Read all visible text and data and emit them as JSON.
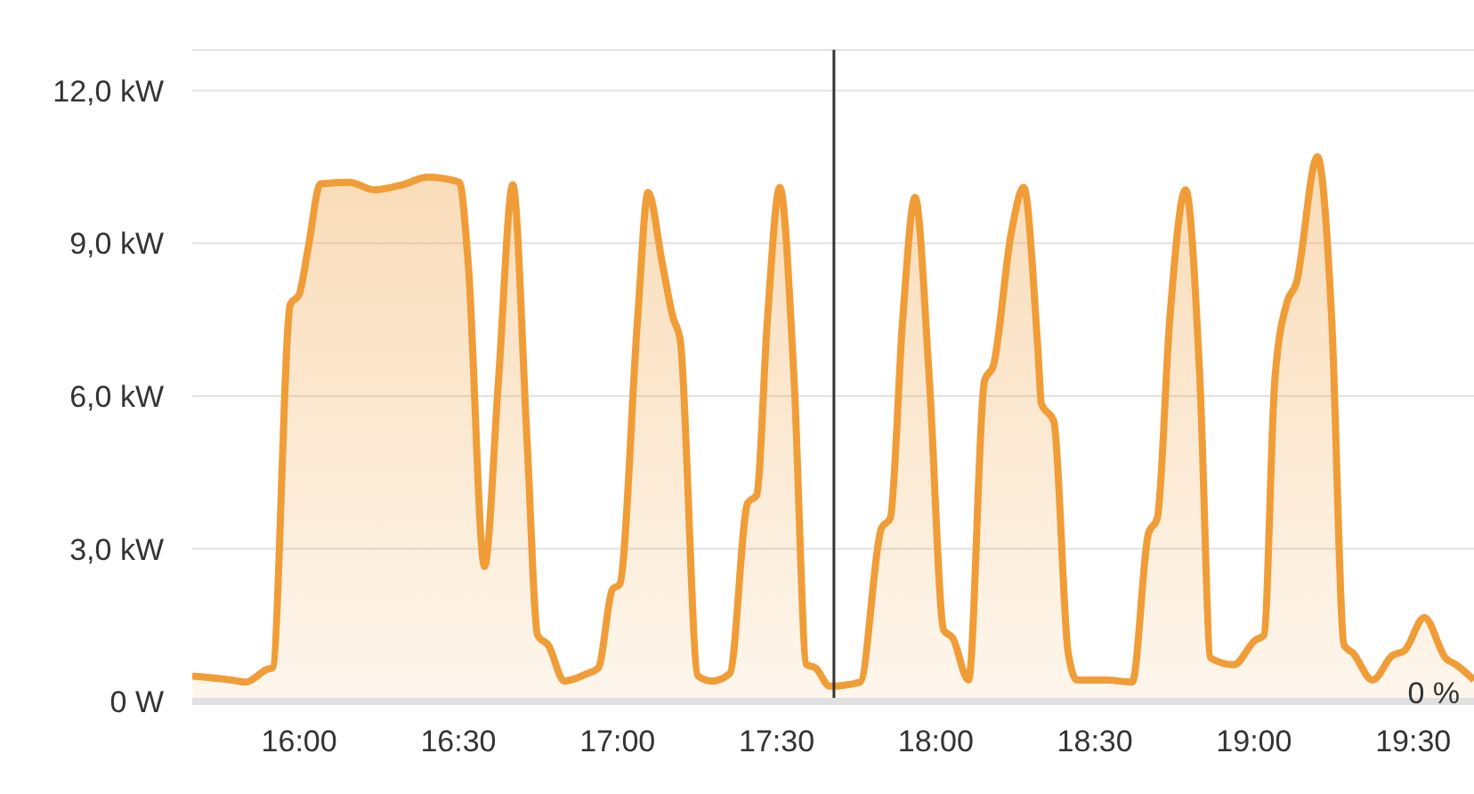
{
  "chart_data": {
    "type": "area",
    "x": [
      15.664,
      15.788,
      15.832,
      15.899,
      15.916,
      15.972,
      16.0,
      16.028,
      16.067,
      16.157,
      16.235,
      16.324,
      16.403,
      16.503,
      16.531,
      16.582,
      16.626,
      16.671,
      16.716,
      16.749,
      16.783,
      16.833,
      16.906,
      16.94,
      16.984,
      17.007,
      17.063,
      17.096,
      17.141,
      17.174,
      17.197,
      17.253,
      17.298,
      17.353,
      17.409,
      17.437,
      17.471,
      17.51,
      17.555,
      17.594,
      17.622,
      17.667,
      17.762,
      17.829,
      17.857,
      17.896,
      17.935,
      17.98,
      18.025,
      18.053,
      18.103,
      18.153,
      18.181,
      18.237,
      18.276,
      18.321,
      18.332,
      18.371,
      18.416,
      18.444,
      18.539,
      18.617,
      18.668,
      18.696,
      18.735,
      18.785,
      18.83,
      18.864,
      18.936,
      19.003,
      19.031,
      19.065,
      19.104,
      19.132,
      19.199,
      19.244,
      19.283,
      19.311,
      19.372,
      19.434,
      19.473,
      19.535,
      19.602,
      19.635,
      19.691
    ],
    "series": [
      {
        "color": "#f09d38",
        "values": [
          0.5,
          0.42,
          0.38,
          0.63,
          0.66,
          7.8,
          8.0,
          8.9,
          10.17,
          10.2,
          10.05,
          10.15,
          10.3,
          10.2,
          8.6,
          2.65,
          6.3,
          10.15,
          5.1,
          1.3,
          1.1,
          0.4,
          0.55,
          0.66,
          2.2,
          2.3,
          7.5,
          10.0,
          8.6,
          7.55,
          7.1,
          0.5,
          0.4,
          0.55,
          3.9,
          4.05,
          7.5,
          10.1,
          6.3,
          0.72,
          0.66,
          0.3,
          0.38,
          3.4,
          3.6,
          7.5,
          9.9,
          6.3,
          1.4,
          1.25,
          0.42,
          6.3,
          6.6,
          9.2,
          10.1,
          6.9,
          5.85,
          5.5,
          0.95,
          0.42,
          0.42,
          0.38,
          3.3,
          3.6,
          7.5,
          10.05,
          6.3,
          0.85,
          0.72,
          1.2,
          1.3,
          6.3,
          7.85,
          8.2,
          10.7,
          7.5,
          1.1,
          0.95,
          0.42,
          0.9,
          1.0,
          1.65,
          0.85,
          0.72,
          0.42
        ]
      }
    ],
    "xlim": [
      15.664,
      19.691
    ],
    "xticks": [
      {
        "value": 16,
        "label": "16:00"
      },
      {
        "value": 16.5,
        "label": "16:30"
      },
      {
        "value": 17,
        "label": "17:00"
      },
      {
        "value": 17.5,
        "label": "17:30"
      },
      {
        "value": 18,
        "label": "18:00"
      },
      {
        "value": 18.5,
        "label": "18:30"
      },
      {
        "value": 19,
        "label": "19:00"
      },
      {
        "value": 19.5,
        "label": "19:30"
      }
    ],
    "ylim": [
      0,
      12.8
    ],
    "yticks": [
      {
        "value": 0,
        "label": "0 W"
      },
      {
        "value": 3,
        "label": "3,0 kW"
      },
      {
        "value": 6,
        "label": "6,0 kW"
      },
      {
        "value": 9,
        "label": "9,0 kW"
      },
      {
        "value": 12,
        "label": "12,0 kW"
      }
    ],
    "grid": "y",
    "ref_lines": [
      {
        "axis": "x",
        "value": 17.68,
        "color": "#333333"
      }
    ],
    "annotations": [
      "0 %"
    ]
  }
}
